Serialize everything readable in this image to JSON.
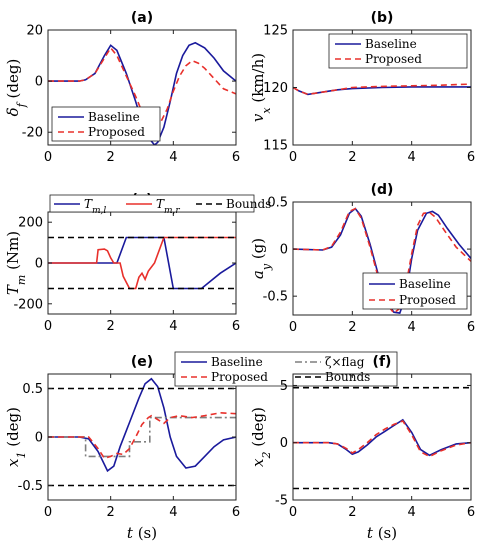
{
  "figure": {
    "legend_font": "serif"
  },
  "chart_data": [
    {
      "id": "a",
      "type": "line",
      "title": "(a)",
      "xlabel": "",
      "ylabel": "δ_f (deg)",
      "xlim": [
        0,
        6
      ],
      "ylim": [
        -25,
        20
      ],
      "xticks": [
        0,
        2,
        4,
        6
      ],
      "yticks": [
        -20,
        0,
        20
      ],
      "legend_loc": "bottom-left",
      "series": [
        {
          "name": "Baseline",
          "color": "#1a1a9c",
          "dash": "solid",
          "x": [
            0,
            1,
            1.2,
            1.5,
            1.8,
            2.0,
            2.2,
            2.5,
            2.8,
            3.0,
            3.2,
            3.4,
            3.5,
            3.7,
            3.9,
            4.1,
            4.3,
            4.5,
            4.7,
            5.0,
            5.3,
            5.6,
            6.0
          ],
          "y": [
            0,
            0,
            0.5,
            3,
            10,
            14,
            12,
            3,
            -8,
            -16,
            -22,
            -25,
            -24,
            -18,
            -8,
            3,
            10,
            14,
            15,
            13,
            9,
            4,
            0
          ]
        },
        {
          "name": "Proposed",
          "color": "#e8302b",
          "dash": "dash",
          "x": [
            0,
            1,
            1.2,
            1.5,
            1.8,
            2.0,
            2.2,
            2.5,
            2.8,
            3.0,
            3.2,
            3.4,
            3.6,
            3.8,
            4.0,
            4.2,
            4.4,
            4.6,
            4.8,
            5.0,
            5.3,
            5.6,
            6.0
          ],
          "y": [
            0,
            0,
            0.5,
            3,
            9,
            13,
            10,
            2,
            -6,
            -12,
            -16,
            -18,
            -16,
            -11,
            -4,
            2,
            6,
            8,
            7,
            5,
            1,
            -3,
            -5
          ]
        }
      ]
    },
    {
      "id": "b",
      "type": "line",
      "title": "(b)",
      "xlabel": "",
      "ylabel": "v_x (km/h)",
      "xlim": [
        0,
        6
      ],
      "ylim": [
        115,
        125
      ],
      "xticks": [
        0,
        2,
        4,
        6
      ],
      "yticks": [
        115,
        120,
        125
      ],
      "legend_loc": "top-right",
      "series": [
        {
          "name": "Baseline",
          "color": "#1a1a9c",
          "dash": "solid",
          "x": [
            0,
            0.2,
            0.5,
            1,
            1.5,
            2,
            3,
            4,
            5,
            6
          ],
          "y": [
            120,
            119.7,
            119.4,
            119.6,
            119.8,
            119.9,
            120,
            120.05,
            120.05,
            120.05
          ]
        },
        {
          "name": "Proposed",
          "color": "#e8302b",
          "dash": "dash",
          "x": [
            0,
            0.2,
            0.5,
            1,
            1.5,
            2,
            3,
            4,
            5,
            5.5,
            6
          ],
          "y": [
            120,
            119.7,
            119.4,
            119.6,
            119.8,
            120,
            120.1,
            120.15,
            120.2,
            120.25,
            120.3
          ]
        }
      ]
    },
    {
      "id": "c",
      "type": "line",
      "title": "(c)",
      "xlabel": "",
      "ylabel": "T_m (Nm)",
      "xlim": [
        0,
        6
      ],
      "ylim": [
        -250,
        250
      ],
      "xticks": [
        0,
        2,
        4,
        6
      ],
      "yticks": [
        -200,
        0,
        200
      ],
      "legend_loc": "top-outside",
      "series": [
        {
          "name": "T_m,l",
          "color": "#1a1a9c",
          "dash": "solid",
          "x": [
            0,
            2.2,
            2.5,
            3.7,
            4.0,
            4.9,
            5.5,
            6.0
          ],
          "y": [
            0,
            0,
            125,
            125,
            -125,
            -125,
            -50,
            0
          ]
        },
        {
          "name": "T_m,r",
          "color": "#e8302b",
          "dash": "solid",
          "x": [
            0,
            1.55,
            1.6,
            1.8,
            1.9,
            2.0,
            2.1,
            2.3,
            2.4,
            2.6,
            2.8,
            2.9,
            3.0,
            3.1,
            3.2,
            3.4,
            3.7,
            4.0,
            6.0
          ],
          "y": [
            0,
            0,
            65,
            68,
            60,
            25,
            0,
            0,
            -65,
            -125,
            -125,
            -70,
            -50,
            -80,
            -40,
            0,
            125,
            125,
            125
          ]
        },
        {
          "name": "Bounds",
          "color": "#000000",
          "dash": "dash",
          "x": [
            0,
            6
          ],
          "y": [
            125,
            125
          ],
          "x2": [
            0,
            6
          ],
          "y2": [
            -125,
            -125
          ]
        }
      ]
    },
    {
      "id": "d",
      "type": "line",
      "title": "(d)",
      "xlabel": "",
      "ylabel": "a_y (g)",
      "xlim": [
        0,
        6
      ],
      "ylim": [
        -0.7,
        0.5
      ],
      "xticks": [
        0,
        2,
        4,
        6
      ],
      "yticks": [
        -0.5,
        0,
        0.5
      ],
      "legend_loc": "bottom-right",
      "series": [
        {
          "name": "Baseline",
          "color": "#1a1a9c",
          "dash": "solid",
          "x": [
            0,
            1,
            1.3,
            1.6,
            1.9,
            2.1,
            2.3,
            2.6,
            2.9,
            3.2,
            3.4,
            3.6,
            3.8,
            4.0,
            4.2,
            4.5,
            4.7,
            4.9,
            5.2,
            5.6,
            6.0
          ],
          "y": [
            0,
            -0.01,
            0.02,
            0.15,
            0.38,
            0.43,
            0.35,
            0.05,
            -0.3,
            -0.58,
            -0.67,
            -0.68,
            -0.5,
            -0.1,
            0.2,
            0.38,
            0.4,
            0.36,
            0.22,
            0.05,
            -0.1
          ]
        },
        {
          "name": "Proposed",
          "color": "#e8302b",
          "dash": "dash",
          "x": [
            0,
            1,
            1.3,
            1.6,
            1.9,
            2.1,
            2.3,
            2.6,
            2.9,
            3.2,
            3.4,
            3.6,
            3.8,
            4.0,
            4.2,
            4.4,
            4.6,
            4.8,
            5.1,
            5.5,
            6.0
          ],
          "y": [
            0,
            -0.01,
            0.03,
            0.18,
            0.4,
            0.43,
            0.33,
            0.02,
            -0.33,
            -0.6,
            -0.68,
            -0.63,
            -0.4,
            -0.05,
            0.25,
            0.38,
            0.39,
            0.34,
            0.2,
            0.02,
            -0.13
          ]
        }
      ]
    },
    {
      "id": "e",
      "type": "line",
      "title": "(e)",
      "xlabel": "t (s)",
      "ylabel": "x_1 (deg)",
      "xlim": [
        0,
        6
      ],
      "ylim": [
        -0.65,
        0.65
      ],
      "xticks": [
        0,
        2,
        4,
        6
      ],
      "yticks": [
        -0.5,
        0,
        0.5
      ],
      "legend_loc": "top-outside",
      "series": [
        {
          "name": "Baseline",
          "color": "#1a1a9c",
          "dash": "solid",
          "x": [
            0,
            1.0,
            1.3,
            1.6,
            1.9,
            2.1,
            2.3,
            2.6,
            2.9,
            3.1,
            3.3,
            3.5,
            3.7,
            3.9,
            4.1,
            4.4,
            4.7,
            5.0,
            5.3,
            5.6,
            6.0
          ],
          "y": [
            0,
            0,
            -0.02,
            -0.15,
            -0.35,
            -0.3,
            -0.1,
            0.15,
            0.4,
            0.55,
            0.6,
            0.52,
            0.3,
            0.0,
            -0.2,
            -0.32,
            -0.3,
            -0.2,
            -0.1,
            -0.03,
            0
          ]
        },
        {
          "name": "ζ×flag",
          "color": "#7f7f7f",
          "dash": "dashdot",
          "x": [
            0,
            1.2,
            1.2,
            2.6,
            2.6,
            3.25,
            3.25,
            4.3,
            5.0,
            6.0
          ],
          "y": [
            0,
            0,
            -0.2,
            -0.2,
            -0.05,
            -0.05,
            0.2,
            0.2,
            0.2,
            0.2
          ]
        },
        {
          "name": "Proposed",
          "color": "#e8302b",
          "dash": "dash",
          "x": [
            0,
            1.3,
            1.6,
            1.8,
            2.0,
            2.2,
            2.4,
            2.6,
            2.8,
            3.0,
            3.2,
            3.3,
            3.5,
            3.7,
            3.9,
            4.2,
            4.6,
            5.0,
            5.5,
            6.0
          ],
          "y": [
            0,
            0,
            -0.12,
            -0.22,
            -0.2,
            -0.17,
            -0.18,
            -0.12,
            0.0,
            0.13,
            0.2,
            0.22,
            0.18,
            0.14,
            0.2,
            0.22,
            0.2,
            0.22,
            0.25,
            0.24
          ]
        },
        {
          "name": "Bounds",
          "color": "#000000",
          "dash": "dash",
          "x": [
            0,
            6
          ],
          "y": [
            0.5,
            0.5
          ],
          "x2": [
            0,
            6
          ],
          "y2": [
            -0.5,
            -0.5
          ]
        }
      ]
    },
    {
      "id": "f",
      "type": "line",
      "title": "(f)",
      "xlabel": "t (s)",
      "ylabel": "x_2 (deg)",
      "xlim": [
        0,
        6
      ],
      "ylim": [
        -5,
        6
      ],
      "xticks": [
        0,
        2,
        4,
        6
      ],
      "yticks": [
        -5,
        0,
        5
      ],
      "legend_loc": "none",
      "series": [
        {
          "name": "Baseline",
          "color": "#1a1a9c",
          "dash": "solid",
          "x": [
            0,
            1.2,
            1.5,
            1.8,
            2.0,
            2.2,
            2.5,
            2.8,
            3.1,
            3.4,
            3.7,
            4.0,
            4.3,
            4.6,
            5.0,
            5.5,
            6.0
          ],
          "y": [
            0,
            0,
            -0.1,
            -0.6,
            -1.0,
            -0.8,
            -0.2,
            0.5,
            1.0,
            1.5,
            2.0,
            0.9,
            -0.6,
            -1.1,
            -0.6,
            -0.1,
            0
          ]
        },
        {
          "name": "Proposed",
          "color": "#e8302b",
          "dash": "dash",
          "x": [
            0,
            1.2,
            1.5,
            1.8,
            2.0,
            2.2,
            2.5,
            2.8,
            3.1,
            3.4,
            3.7,
            4.0,
            4.3,
            4.6,
            5.0,
            5.5,
            6.0
          ],
          "y": [
            0,
            0,
            -0.1,
            -0.5,
            -0.9,
            -0.6,
            0.0,
            0.7,
            1.2,
            1.6,
            1.9,
            0.7,
            -0.8,
            -1.2,
            -0.7,
            -0.2,
            0
          ]
        },
        {
          "name": "Bounds",
          "color": "#000000",
          "dash": "dash",
          "x": [
            0,
            6
          ],
          "y": [
            4.8,
            4.8
          ],
          "x2": [
            0,
            6
          ],
          "y2": [
            -4,
            -4
          ]
        }
      ]
    }
  ]
}
